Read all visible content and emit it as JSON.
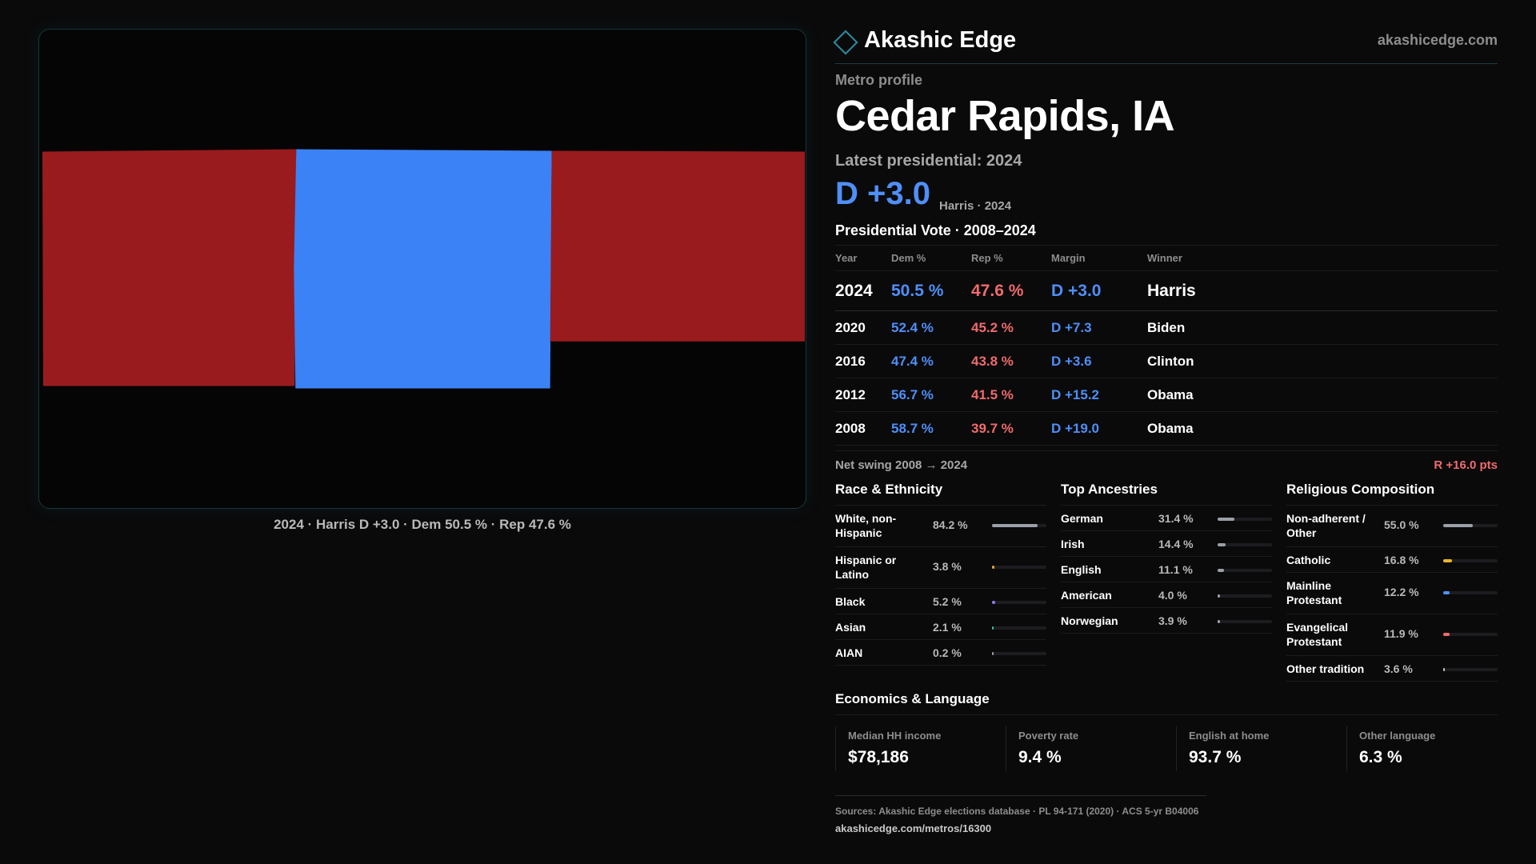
{
  "map": {
    "caption": "2024 · Harris D +3.0 · Dem 50.5 % · Rep 47.6 %",
    "colors": {
      "dem": "#3b82f6",
      "rep": "#991b1e"
    }
  },
  "brand": {
    "name": "Akashic Edge",
    "url": "akashicedge.com"
  },
  "header": {
    "kicker": "Metro profile",
    "title": "Cedar Rapids, IA",
    "latest": "Latest presidential: 2024",
    "margin": "D +3.0",
    "margin_sub": "Harris · 2024"
  },
  "presidential": {
    "title": "Presidential Vote · 2008–2024",
    "columns": [
      "Year",
      "Dem %",
      "Rep %",
      "Margin",
      "Winner"
    ],
    "rows": [
      {
        "year": "2024",
        "dem": "50.5 %",
        "rep": "47.6 %",
        "margin": "D +3.0",
        "winner": "Harris"
      },
      {
        "year": "2020",
        "dem": "52.4 %",
        "rep": "45.2 %",
        "margin": "D +7.3",
        "winner": "Biden"
      },
      {
        "year": "2016",
        "dem": "47.4 %",
        "rep": "43.8 %",
        "margin": "D +3.6",
        "winner": "Clinton"
      },
      {
        "year": "2012",
        "dem": "56.7 %",
        "rep": "41.5 %",
        "margin": "D +15.2",
        "winner": "Obama"
      },
      {
        "year": "2008",
        "dem": "58.7 %",
        "rep": "39.7 %",
        "margin": "D +19.0",
        "winner": "Obama"
      }
    ],
    "swing_label": "Net swing 2008 → 2024",
    "swing_value": "R +16.0 pts"
  },
  "race": {
    "title": "Race & Ethnicity",
    "items": [
      {
        "label": "White, non-Hispanic",
        "value": "84.2 %",
        "pct": 84.2,
        "color": "#9aa0a8"
      },
      {
        "label": "Hispanic or Latino",
        "value": "3.8 %",
        "pct": 3.8,
        "color": "#e0a534"
      },
      {
        "label": "Black",
        "value": "5.2 %",
        "pct": 5.2,
        "color": "#8f7cf0"
      },
      {
        "label": "Asian",
        "value": "2.1 %",
        "pct": 2.1,
        "color": "#35c29a"
      },
      {
        "label": "AIAN",
        "value": "0.2 %",
        "pct": 0.2,
        "color": "#9aa0a8"
      }
    ]
  },
  "ancestry": {
    "title": "Top Ancestries",
    "items": [
      {
        "label": "German",
        "value": "31.4 %",
        "pct": 31.4,
        "color": "#9aa0a8"
      },
      {
        "label": "Irish",
        "value": "14.4 %",
        "pct": 14.4,
        "color": "#9aa0a8"
      },
      {
        "label": "English",
        "value": "11.1 %",
        "pct": 11.1,
        "color": "#9aa0a8"
      },
      {
        "label": "American",
        "value": "4.0 %",
        "pct": 4.0,
        "color": "#9aa0a8"
      },
      {
        "label": "Norwegian",
        "value": "3.9 %",
        "pct": 3.9,
        "color": "#9aa0a8"
      }
    ]
  },
  "religion": {
    "title": "Religious Composition",
    "items": [
      {
        "label": "Non-adherent / Other",
        "value": "55.0 %",
        "pct": 55.0,
        "color": "#9aa0a8"
      },
      {
        "label": "Catholic",
        "value": "16.8 %",
        "pct": 16.8,
        "color": "#e8b52c"
      },
      {
        "label": "Mainline Protestant",
        "value": "12.2 %",
        "pct": 12.2,
        "color": "#4f8ff7"
      },
      {
        "label": "Evangelical Protestant",
        "value": "11.9 %",
        "pct": 11.9,
        "color": "#f06b6b"
      },
      {
        "label": "Other tradition",
        "value": "3.6 %",
        "pct": 3.6,
        "color": "#c9c9c9"
      }
    ]
  },
  "economics": {
    "title": "Economics & Language",
    "cards": [
      {
        "label": "Median HH income",
        "value": "$78,186"
      },
      {
        "label": "Poverty rate",
        "value": "9.4 %"
      },
      {
        "label": "English at home",
        "value": "93.7 %"
      },
      {
        "label": "Other language",
        "value": "6.3 %"
      }
    ]
  },
  "sources": {
    "text": "Sources: Akashic Edge elections database · PL 94-171 (2020) · ACS 5-yr B04006",
    "url": "akashicedge.com/metros/16300"
  }
}
